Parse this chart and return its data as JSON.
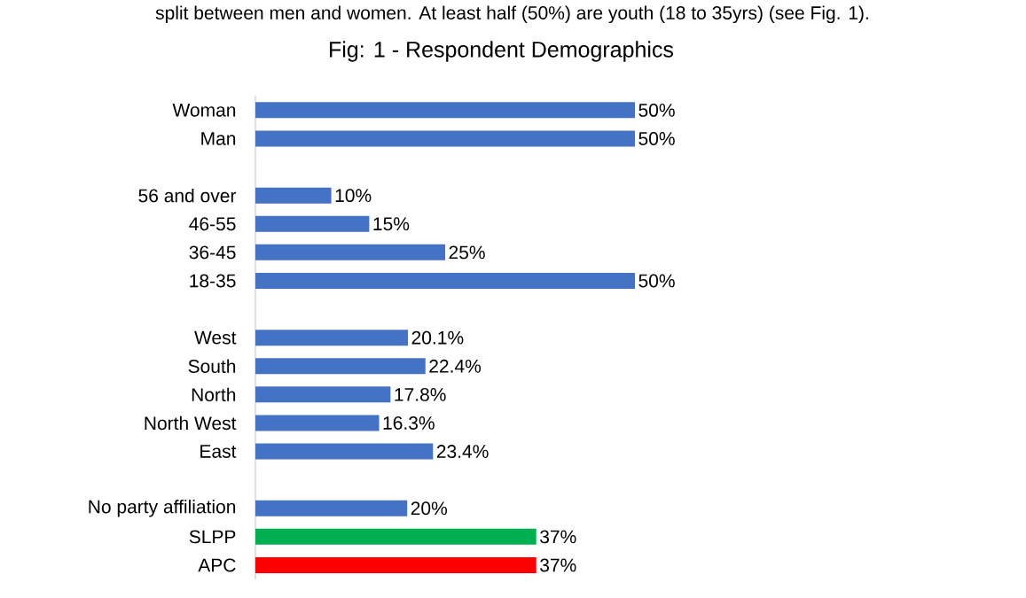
{
  "chart_data": {
    "type": "bar",
    "orientation": "horizontal",
    "title": "Fig: 1 - Respondent Demographics",
    "annotations": [
      "split between men and women. At least half (50%) are youth (18 to 35yrs) (see Fig. 1)."
    ],
    "categories": [
      "Woman",
      "Man",
      null,
      "56 and over",
      "46-55",
      "36-45",
      "18-35",
      null,
      "West",
      "South",
      "North",
      "North West",
      "East",
      null,
      "No party affiliation",
      "SLPP",
      "APC"
    ],
    "values": [
      50,
      50,
      null,
      10,
      15,
      25,
      50,
      null,
      20.1,
      22.4,
      17.8,
      16.3,
      23.4,
      null,
      20,
      37,
      37
    ],
    "colors": [
      "#4472c4",
      "#4472c4",
      null,
      "#4472c4",
      "#4472c4",
      "#4472c4",
      "#4472c4",
      null,
      "#4472c4",
      "#4472c4",
      "#4472c4",
      "#4472c4",
      "#4472c4",
      null,
      "#4472c4",
      "#00b050",
      "#ff0000"
    ],
    "value_labels": [
      "50%",
      "50%",
      null,
      "10%",
      "15%",
      "25%",
      "50%",
      null,
      "20.1%",
      "22.4%",
      "17.8%",
      "16.3%",
      "23.4%",
      null,
      "20%",
      "37%",
      "37%"
    ]
  }
}
